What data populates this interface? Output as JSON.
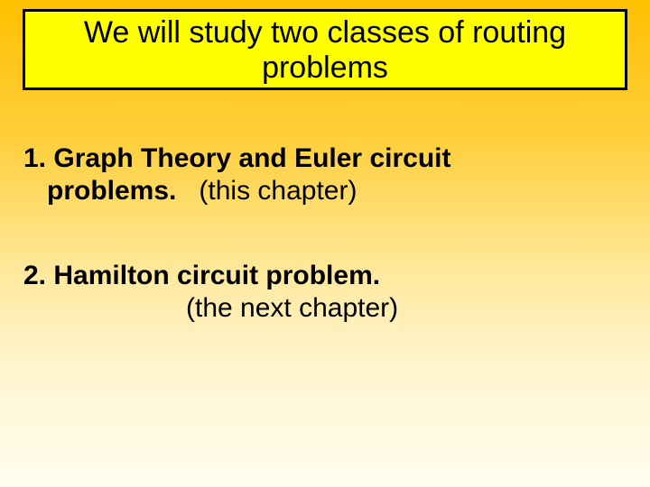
{
  "slide": {
    "background_gradient": {
      "top_color": "#ffc000",
      "bottom_color": "#fffdf0"
    },
    "title": {
      "text": "We will study two classes of routing problems",
      "box_bg_color": "#ffff00",
      "box_border_color": "#000000",
      "box_border_width": 3,
      "font_size": 34,
      "font_weight": "normal",
      "text_color": "#000000"
    },
    "items": [
      {
        "number": "1.",
        "bold_text": "Graph Theory and Euler circuit problems.",
        "plain_text": "(this chapter)",
        "font_size": 30,
        "bold_color": "#000000",
        "plain_color": "#000000"
      },
      {
        "number": "2.",
        "bold_text": "Hamilton circuit problem.",
        "plain_text": "(the next chapter)",
        "font_size": 30,
        "bold_color": "#000000",
        "plain_color": "#000000"
      }
    ]
  }
}
